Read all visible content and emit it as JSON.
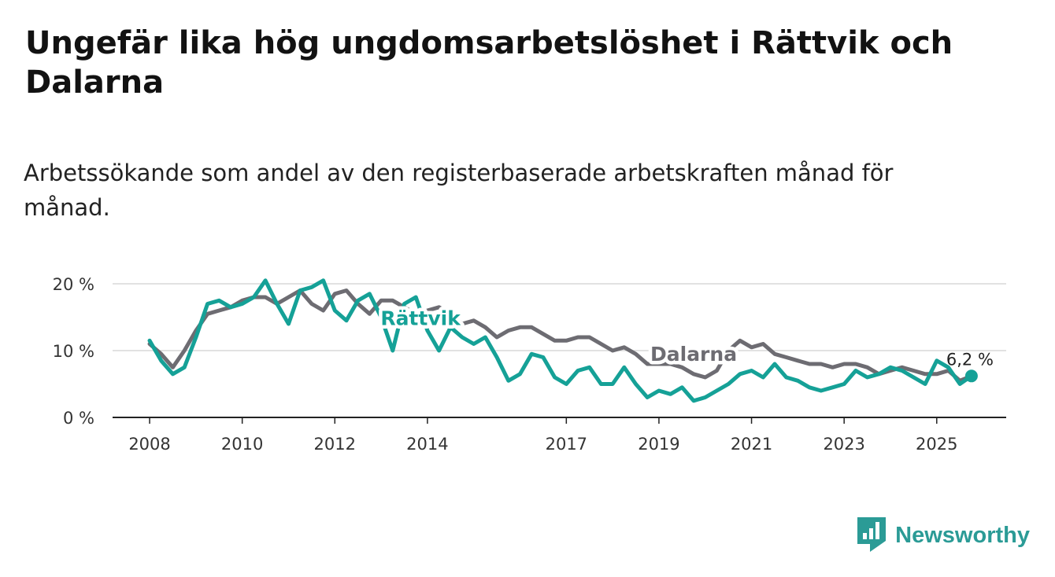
{
  "header": {
    "title": "Ungefär lika hög ungdomsarbetslöshet i Rättvik och Dalarna",
    "subtitle": "Arbetssökande som andel av den registerbaserade arbetskraften månad för månad."
  },
  "brand": {
    "name": "Newsworthy",
    "color": "#2b9b96"
  },
  "chart_data": {
    "type": "line",
    "title": "Ungefär lika hög ungdomsarbetslöshet i Rättvik och Dalarna",
    "subtitle": "Arbetssökande som andel av den registerbaserade arbetskraften månad för månad.",
    "xlabel": "",
    "ylabel": "",
    "ylim": [
      0,
      20
    ],
    "xlim": [
      2007.2,
      2026.5
    ],
    "grid": true,
    "yticks": [
      0,
      10,
      20
    ],
    "ytick_labels": [
      "0 %",
      "10 %",
      "20 %"
    ],
    "xticks": [
      "2008",
      "2010",
      "2012",
      "2014",
      "2017",
      "2019",
      "2021",
      "2023",
      "2025"
    ],
    "end_label": "6,2 %",
    "series": [
      {
        "name": "Rättvik",
        "color": "#15a197",
        "x": [
          2008.0,
          2008.25,
          2008.5,
          2008.75,
          2009.0,
          2009.25,
          2009.5,
          2009.75,
          2010.0,
          2010.25,
          2010.5,
          2010.75,
          2011.0,
          2011.25,
          2011.5,
          2011.75,
          2012.0,
          2012.25,
          2012.5,
          2012.75,
          2013.0,
          2013.25,
          2013.5,
          2013.75,
          2014.0,
          2014.25,
          2014.5,
          2014.75,
          2015.0,
          2015.25,
          2015.5,
          2015.75,
          2016.0,
          2016.25,
          2016.5,
          2016.75,
          2017.0,
          2017.25,
          2017.5,
          2017.75,
          2018.0,
          2018.25,
          2018.5,
          2018.75,
          2019.0,
          2019.25,
          2019.5,
          2019.75,
          2020.0,
          2020.25,
          2020.5,
          2020.75,
          2021.0,
          2021.25,
          2021.5,
          2021.75,
          2022.0,
          2022.25,
          2022.5,
          2022.75,
          2023.0,
          2023.25,
          2023.5,
          2023.75,
          2024.0,
          2024.25,
          2024.5,
          2024.75,
          2025.0,
          2025.25,
          2025.5,
          2025.75
        ],
        "values": [
          11.5,
          8.5,
          6.5,
          7.5,
          12,
          17,
          17.5,
          16.5,
          17,
          18,
          20.5,
          17,
          14,
          19,
          19.5,
          20.5,
          16,
          14.5,
          17.5,
          18.5,
          15,
          10,
          17,
          18,
          13,
          10,
          13.5,
          12,
          11,
          12,
          9,
          5.5,
          6.5,
          9.5,
          9,
          6,
          5,
          7,
          7.5,
          5,
          5,
          7.5,
          5,
          3,
          4,
          3.5,
          4.5,
          2.5,
          3,
          4,
          5,
          6.5,
          7,
          6,
          8,
          6,
          5.5,
          4.5,
          4,
          4.5,
          5,
          7,
          6,
          6.5,
          7.5,
          7,
          6,
          5,
          8.5,
          7.5,
          5,
          6.2
        ]
      },
      {
        "name": "Dalarna",
        "color": "#6d6c72",
        "x": [
          2008.0,
          2008.25,
          2008.5,
          2008.75,
          2009.0,
          2009.25,
          2009.5,
          2009.75,
          2010.0,
          2010.25,
          2010.5,
          2010.75,
          2011.0,
          2011.25,
          2011.5,
          2011.75,
          2012.0,
          2012.25,
          2012.5,
          2012.75,
          2013.0,
          2013.25,
          2013.5,
          2013.75,
          2014.0,
          2014.25,
          2014.5,
          2014.75,
          2015.0,
          2015.25,
          2015.5,
          2015.75,
          2016.0,
          2016.25,
          2016.5,
          2016.75,
          2017.0,
          2017.25,
          2017.5,
          2017.75,
          2018.0,
          2018.25,
          2018.5,
          2018.75,
          2019.0,
          2019.25,
          2019.5,
          2019.75,
          2020.0,
          2020.25,
          2020.5,
          2020.75,
          2021.0,
          2021.25,
          2021.5,
          2021.75,
          2022.0,
          2022.25,
          2022.5,
          2022.75,
          2023.0,
          2023.25,
          2023.5,
          2023.75,
          2024.0,
          2024.25,
          2024.5,
          2024.75,
          2025.0,
          2025.25,
          2025.5,
          2025.75
        ],
        "values": [
          11,
          9.5,
          7.5,
          10,
          13,
          15.5,
          16,
          16.5,
          17.5,
          18,
          18,
          17,
          18,
          19,
          17,
          16,
          18.5,
          19,
          17,
          15.5,
          17.5,
          17.5,
          16.5,
          15.5,
          16,
          16.5,
          15.5,
          14,
          14.5,
          13.5,
          12,
          13,
          13.5,
          13.5,
          12.5,
          11.5,
          11.5,
          12,
          12,
          11,
          10,
          10.5,
          9.5,
          8,
          8,
          8,
          7.5,
          6.5,
          6,
          7,
          10,
          11.5,
          10.5,
          11,
          9.5,
          9,
          8.5,
          8,
          8,
          7.5,
          8,
          8,
          7.5,
          6.5,
          7,
          7.5,
          7,
          6.5,
          6.5,
          7,
          5.5,
          6.2
        ]
      }
    ],
    "annotations": [
      {
        "text": "Rättvik",
        "series": "Rättvik",
        "x": 2013.85,
        "y": 13.8
      },
      {
        "text": "Dalarna",
        "series": "Dalarna",
        "x": 2019.75,
        "y": 8.5
      }
    ]
  }
}
